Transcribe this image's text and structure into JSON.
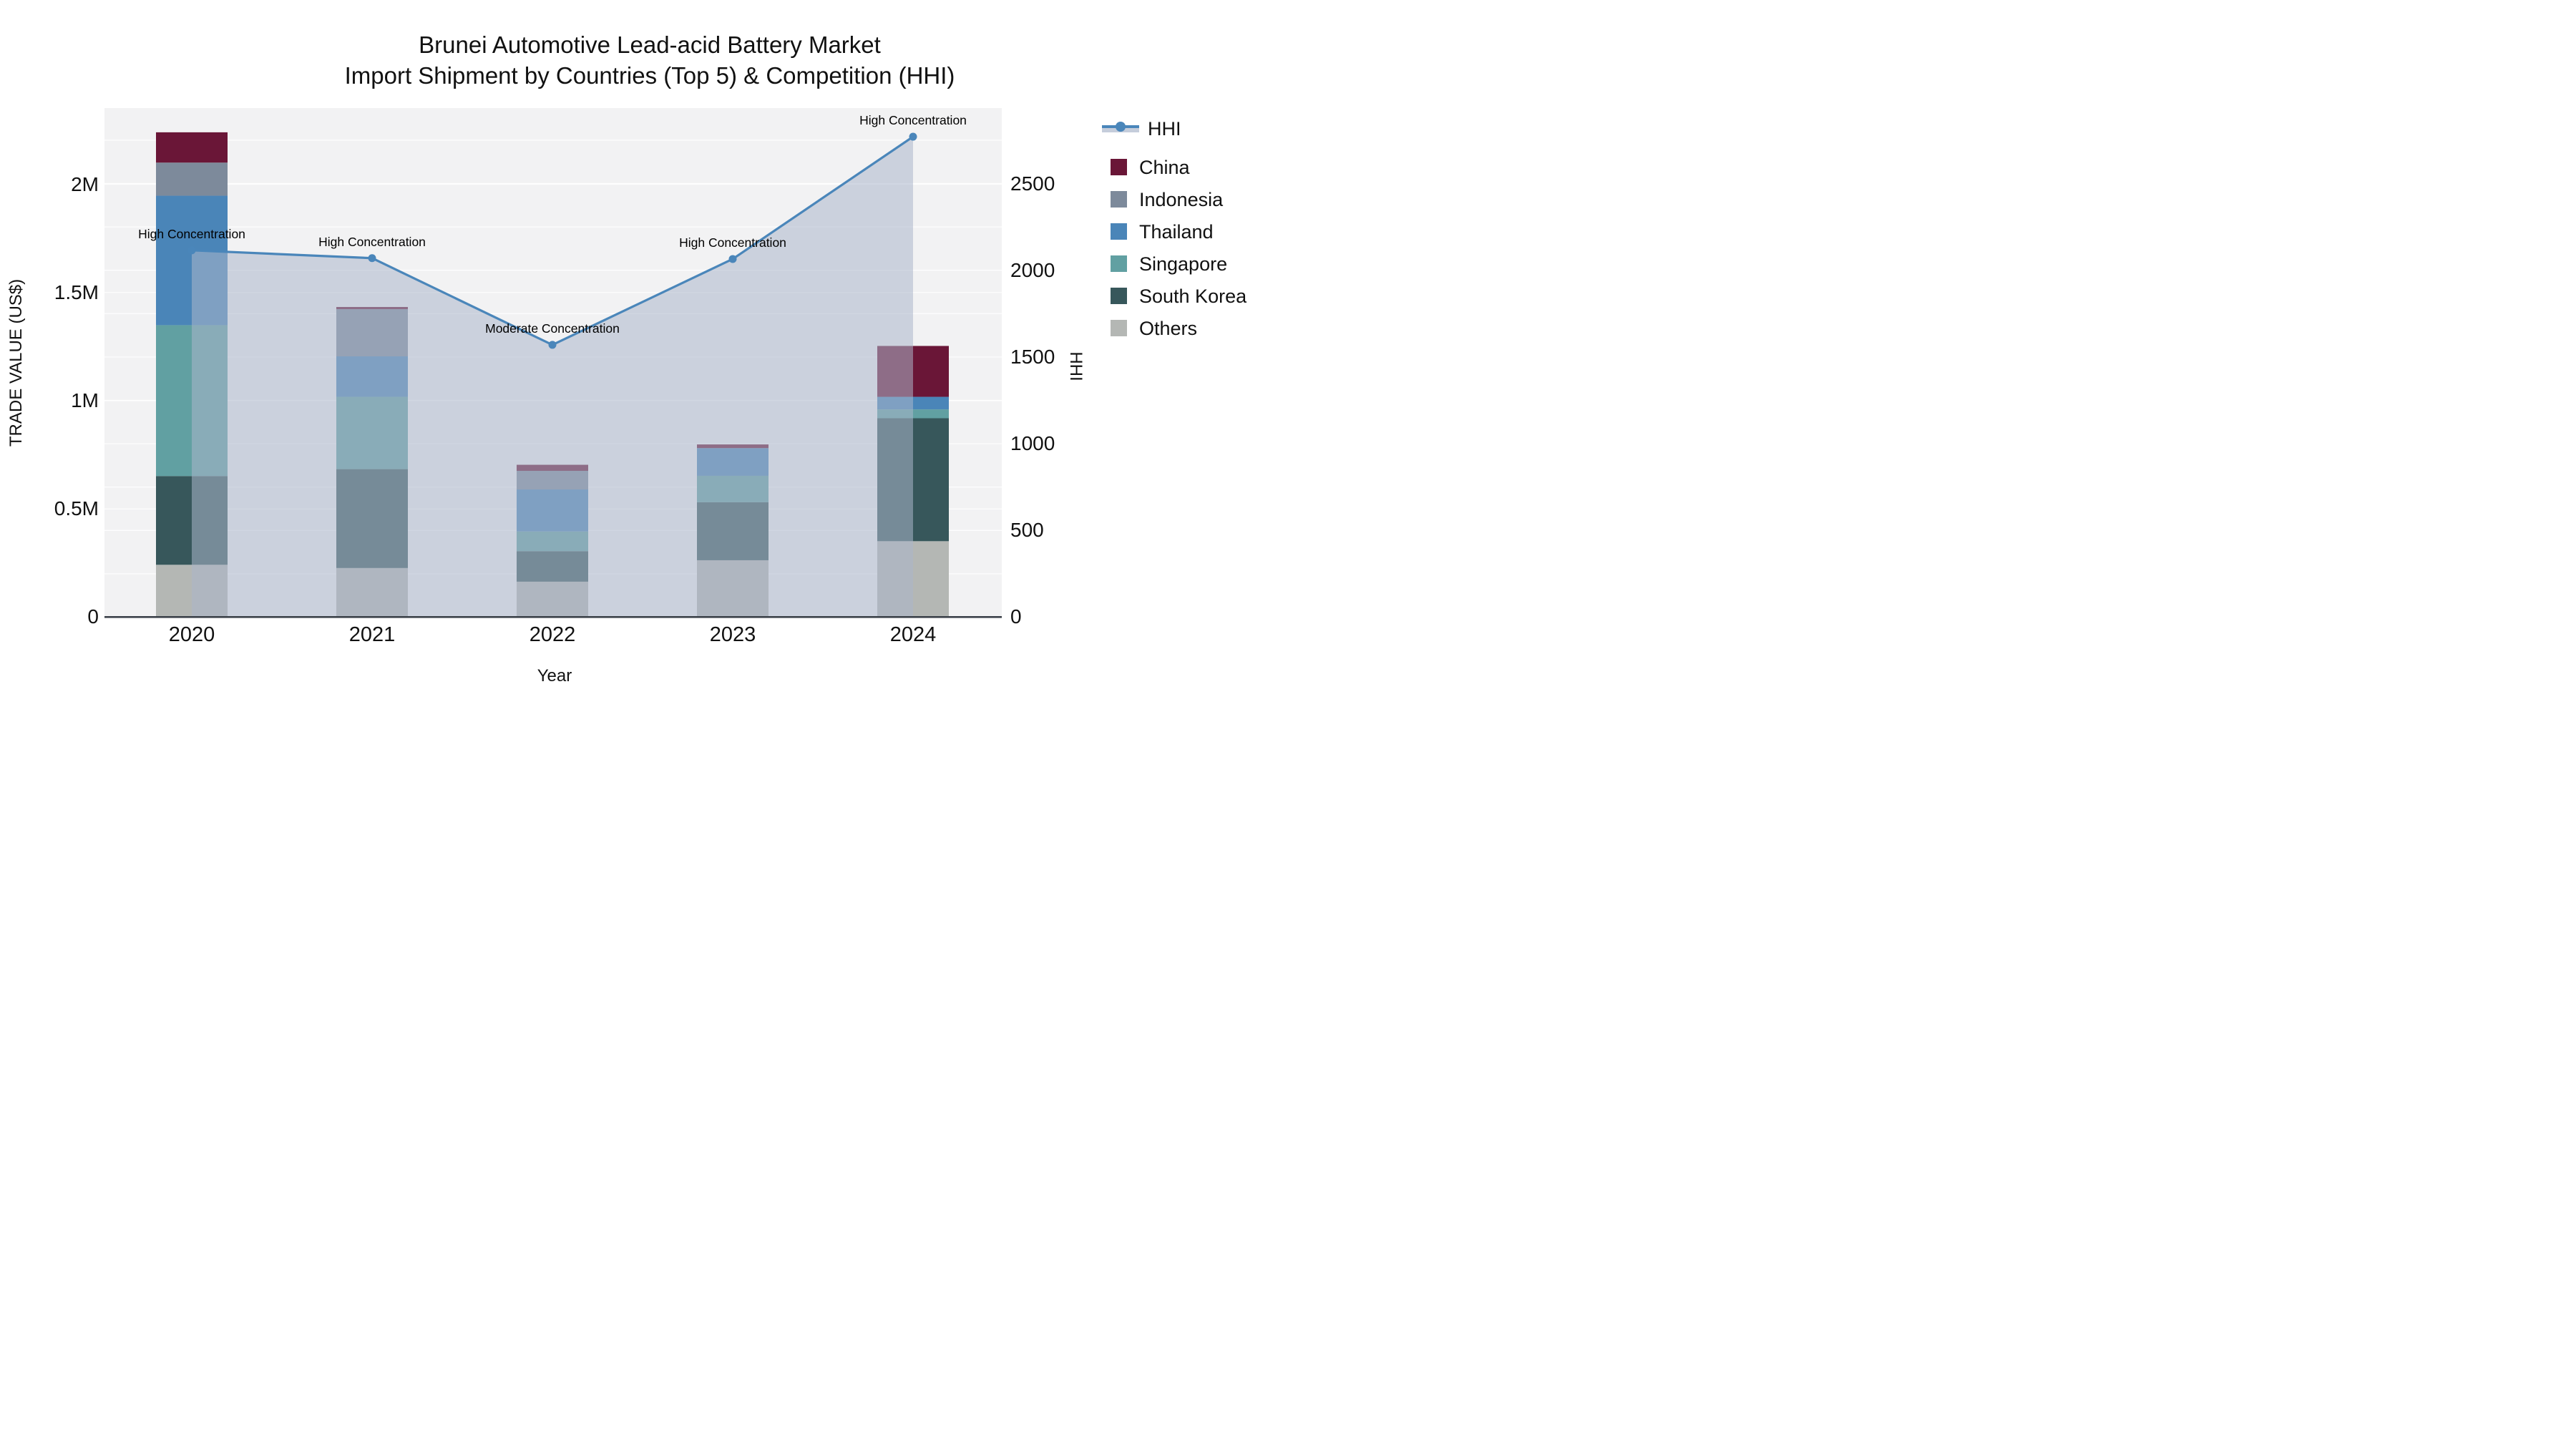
{
  "title": {
    "line1": "Brunei Automotive Lead-acid Battery Market",
    "line2": "Import Shipment by Countries (Top 5) & Competition (HHI)"
  },
  "chart_data": {
    "type": "combo: stacked bar (trade value) + line with area (HHI)",
    "categories": [
      "2020",
      "2021",
      "2022",
      "2023",
      "2024"
    ],
    "bar_value_unit": "US$",
    "series": [
      {
        "name": "China",
        "color": "#6a1637",
        "values": [
          140000,
          10000,
          28000,
          17000,
          235000
        ]
      },
      {
        "name": "Indonesia",
        "color": "#7d8a9b",
        "values": [
          153000,
          218000,
          86000,
          0,
          0
        ]
      },
      {
        "name": "Thailand",
        "color": "#4a85b8",
        "values": [
          598000,
          187000,
          194000,
          128000,
          58000
        ]
      },
      {
        "name": "Singapore",
        "color": "#61a0a2",
        "values": [
          697000,
          334000,
          91000,
          122000,
          41000
        ]
      },
      {
        "name": "South Korea",
        "color": "#37575b",
        "values": [
          410000,
          457000,
          141000,
          268000,
          568000
        ]
      },
      {
        "name": "Others",
        "color": "#b4b7b4",
        "values": [
          242000,
          227000,
          164000,
          263000,
          351000
        ]
      }
    ],
    "stack_order_bottom_to_top": [
      "Others",
      "South Korea",
      "Singapore",
      "Thailand",
      "Indonesia",
      "China"
    ],
    "bar_totals": [
      2240000,
      1433000,
      704000,
      798000,
      1253000
    ],
    "hhi": {
      "name": "HHI",
      "values": [
        2115,
        2070,
        1570,
        2065,
        2770
      ],
      "line_color": "#4a86ba",
      "area_fill": "rgba(171,182,203,0.55)",
      "legend_band_color": "#c5cddb"
    },
    "annotations": [
      {
        "x": "2020",
        "text": "High Concentration"
      },
      {
        "x": "2021",
        "text": "High Concentration"
      },
      {
        "x": "2022",
        "text": "Moderate Concentration"
      },
      {
        "x": "2023",
        "text": "High Concentration"
      },
      {
        "x": "2024",
        "text": "High Concentration"
      }
    ],
    "y_left": {
      "title": "TRADE VALUE (US$)",
      "ticks": [
        "0",
        "0.5M",
        "1M",
        "1.5M",
        "2M"
      ],
      "tick_values": [
        0,
        500000,
        1000000,
        1500000,
        2000000
      ],
      "scale_max": 2000000
    },
    "y_right": {
      "title": "HHI",
      "ticks": [
        "0",
        "500",
        "1000",
        "1500",
        "2000",
        "2500"
      ],
      "tick_values": [
        0,
        500,
        1000,
        1500,
        2000,
        2500
      ],
      "minor_grid_step": 250,
      "scale_max": 2500
    },
    "x_axis": {
      "title": "Year"
    },
    "legend_order": [
      "HHI",
      "China",
      "Indonesia",
      "Thailand",
      "Singapore",
      "South Korea",
      "Others"
    ],
    "plot_bg": "#f2f2f3",
    "grid_color": "rgba(255,255,255,0.85)",
    "axis_line_color": "#3b4149"
  }
}
